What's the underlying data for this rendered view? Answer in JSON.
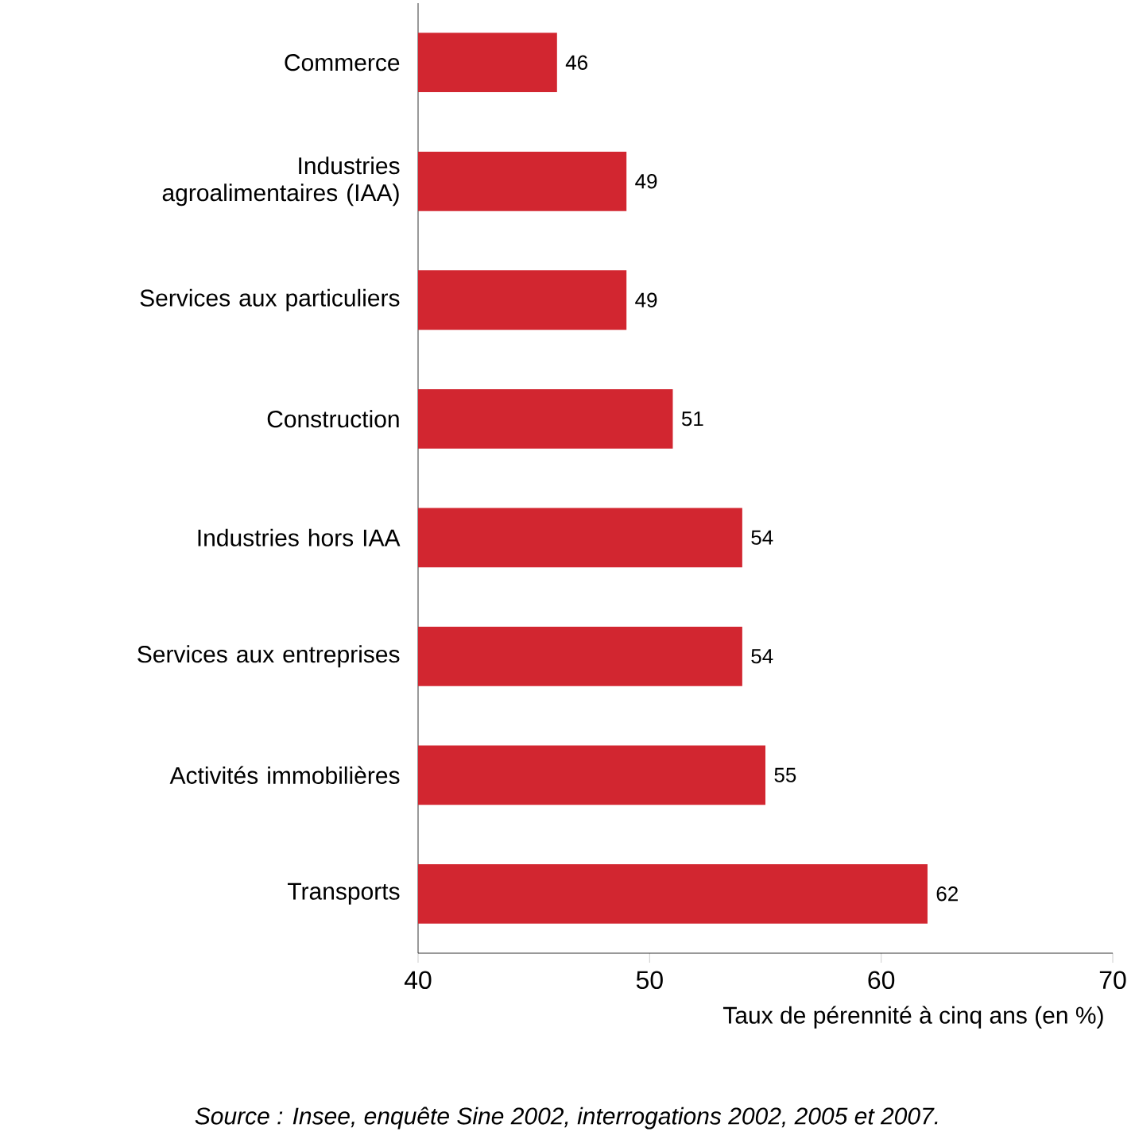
{
  "chart_data": {
    "type": "bar",
    "orientation": "horizontal",
    "categories": [
      "Commerce",
      "Industries agroalimentaires (IAA)",
      "Services aux particuliers",
      "Construction",
      "Industries hors IAA",
      "Services aux entreprises",
      "Activités immobilières",
      "Transports"
    ],
    "values": [
      46,
      49,
      49,
      51,
      54,
      54,
      55,
      62
    ],
    "color": "#d22630",
    "xlim": [
      40,
      70
    ],
    "xticks": [
      40,
      50,
      60,
      70
    ],
    "xlabel": "Taux de pérennité à cinq ans (en %)",
    "data_labels": true,
    "annotations": [
      "*Source : Insee, enquête Sine 2002, interrogations 2002, 2005 et 2007.*"
    ]
  }
}
